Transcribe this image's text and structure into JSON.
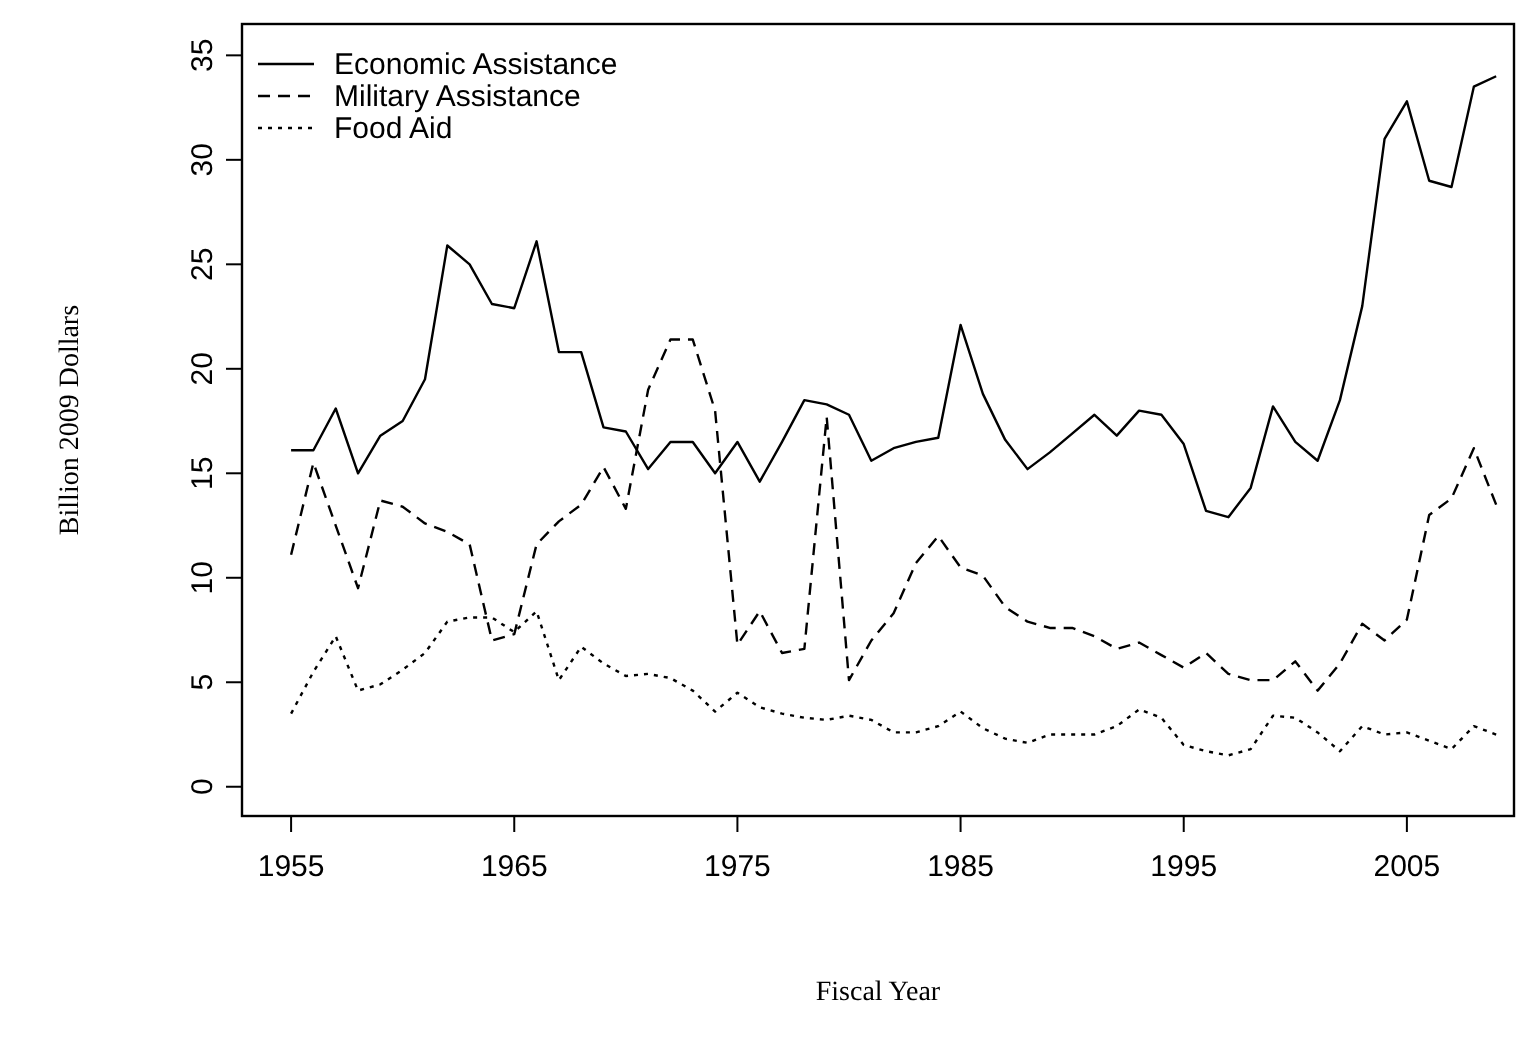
{
  "chart_data": {
    "type": "line",
    "xlabel": "Fiscal Year",
    "ylabel": "Billion 2009 Dollars",
    "x": [
      1955,
      1956,
      1957,
      1958,
      1959,
      1960,
      1961,
      1962,
      1963,
      1964,
      1965,
      1966,
      1967,
      1968,
      1969,
      1970,
      1971,
      1972,
      1973,
      1974,
      1975,
      1976,
      1977,
      1978,
      1979,
      1980,
      1981,
      1982,
      1983,
      1984,
      1985,
      1986,
      1987,
      1988,
      1989,
      1990,
      1991,
      1992,
      1993,
      1994,
      1995,
      1996,
      1997,
      1998,
      1999,
      2000,
      2001,
      2002,
      2003,
      2004,
      2005,
      2006,
      2007,
      2008,
      2009
    ],
    "series": [
      {
        "name": "Economic Assistance",
        "color": "#000000",
        "line_style": "solid",
        "values": [
          16.1,
          16.1,
          18.1,
          15.0,
          16.8,
          17.5,
          19.5,
          25.9,
          25.0,
          23.1,
          22.9,
          26.1,
          20.8,
          20.8,
          17.2,
          17.0,
          15.2,
          16.5,
          16.5,
          15.0,
          16.5,
          14.6,
          16.5,
          18.5,
          18.3,
          17.8,
          15.6,
          16.2,
          16.5,
          16.7,
          22.1,
          18.8,
          16.6,
          15.2,
          16.0,
          16.9,
          17.8,
          16.8,
          18.0,
          17.8,
          16.4,
          13.2,
          12.9,
          14.3,
          18.2,
          16.5,
          15.6,
          18.5,
          23.0,
          31.0,
          32.8,
          29.0,
          28.7,
          33.5,
          34.0
        ]
      },
      {
        "name": "Military Assistance",
        "color": "#000000",
        "line_style": "dashed",
        "values": [
          11.1,
          15.5,
          12.5,
          9.5,
          13.7,
          13.4,
          12.6,
          12.2,
          11.6,
          7.0,
          7.3,
          11.6,
          12.7,
          13.5,
          15.3,
          13.3,
          19.0,
          21.4,
          21.4,
          18.0,
          6.8,
          8.4,
          6.4,
          6.6,
          17.7,
          5.1,
          7.0,
          8.3,
          10.7,
          12.0,
          10.5,
          10.1,
          8.6,
          7.9,
          7.6,
          7.6,
          7.2,
          6.6,
          6.9,
          6.3,
          5.7,
          6.4,
          5.4,
          5.1,
          5.1,
          6.0,
          4.6,
          5.9,
          7.8,
          7.0,
          8.0,
          13.0,
          13.8,
          16.2,
          13.5
        ]
      },
      {
        "name": "Food Aid",
        "color": "#000000",
        "line_style": "dotted",
        "values": [
          3.5,
          5.5,
          7.2,
          4.6,
          4.9,
          5.6,
          6.4,
          7.9,
          8.1,
          8.1,
          7.4,
          8.4,
          5.1,
          6.7,
          5.9,
          5.3,
          5.4,
          5.2,
          4.6,
          3.6,
          4.5,
          3.8,
          3.5,
          3.3,
          3.2,
          3.4,
          3.2,
          2.6,
          2.6,
          2.9,
          3.6,
          2.8,
          2.3,
          2.1,
          2.5,
          2.5,
          2.5,
          2.9,
          3.7,
          3.3,
          2.0,
          1.7,
          1.5,
          1.8,
          3.4,
          3.3,
          2.6,
          1.7,
          2.9,
          2.5,
          2.6,
          2.2,
          1.8,
          2.9,
          2.5
        ]
      }
    ],
    "xlim": [
      1952.8,
      2009.8
    ],
    "xticks": [
      1955,
      1965,
      1975,
      1985,
      1995,
      2005
    ],
    "ylim": [
      -1.4,
      36.5
    ],
    "yticks": [
      0,
      5,
      10,
      15,
      20,
      25,
      30,
      35
    ],
    "legend": "top left",
    "grid": false
  }
}
